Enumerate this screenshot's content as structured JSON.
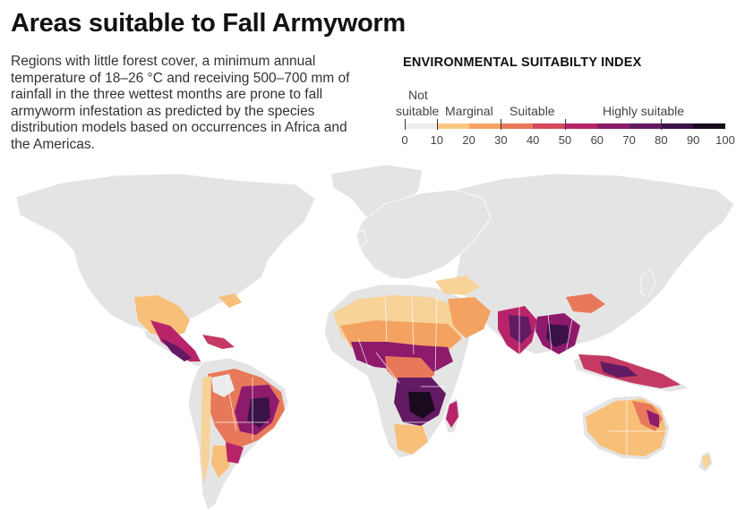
{
  "header": {
    "title": "Areas suitable to Fall Armyworm",
    "description": "Regions with little forest cover, a minimum annual temperature of 18–26 °C and receiving 500–700 mm of rainfall in the three wettest months are prone to fall armyworm infestation as predicted by the species distribution models based on occurrences in Africa and the Americas."
  },
  "legend": {
    "title": "ENVIRONMENTAL SUITABILTY INDEX",
    "categories": [
      {
        "line1": "Not",
        "line2": "suitable",
        "range": [
          0,
          10
        ]
      },
      {
        "label": "Marginal",
        "range": [
          10,
          30
        ]
      },
      {
        "label": "Suitable",
        "range": [
          30,
          50
        ]
      },
      {
        "label": "Highly suitable",
        "range": [
          50,
          100
        ]
      }
    ],
    "ticks": [
      "0",
      "10",
      "20",
      "30",
      "40",
      "50",
      "60",
      "70",
      "80",
      "90",
      "100"
    ],
    "colors": [
      "#ececec",
      "#f9c784",
      "#f4a261",
      "#e8785a",
      "#d6495e",
      "#b8246a",
      "#8e1a6c",
      "#621a62",
      "#3d1248",
      "#1a0a1e"
    ]
  },
  "map_colors": {
    "land": "#e4e4e4",
    "borders": "#ffffff",
    "marginal": "#f8bf78",
    "marginal_low": "#f7d39a",
    "suitable": "#e8785a",
    "suitable_high": "#c43a62",
    "highly": "#7a1f6c",
    "highly_dark": "#3a1248"
  }
}
